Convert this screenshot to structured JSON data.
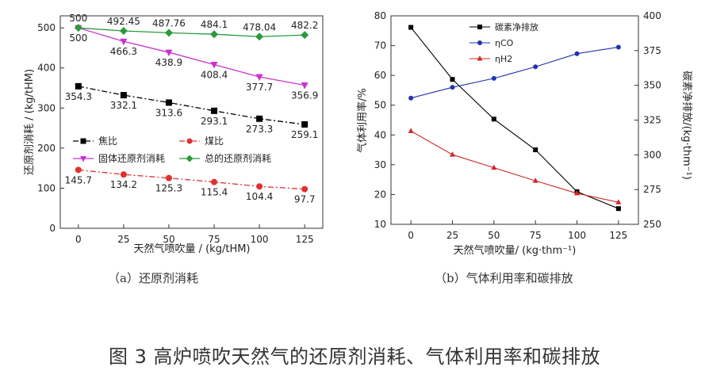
{
  "figure_caption": "图 3  高炉喷吹天然气的还原剂消耗、气体利用率和碳排放",
  "chart_data": [
    {
      "type": "line",
      "caption": "（a）还原剂消耗",
      "xlabel": "天然气喷吹量 / (kg/tHM)",
      "ylabel": "还原剂消耗 / (kg/tHM)",
      "x": [
        0,
        25,
        50,
        75,
        100,
        125
      ],
      "x_ticks": [
        "0",
        "25",
        "50",
        "75",
        "100",
        "125"
      ],
      "y_ticks": [
        "0",
        "100",
        "200",
        "300",
        "400",
        "500"
      ],
      "xlim": [
        -10,
        135
      ],
      "ylim": [
        0,
        530
      ],
      "series": [
        {
          "name": "焦比",
          "values": [
            354.3,
            332.1,
            313.6,
            293.1,
            273.3,
            259.1
          ],
          "labels": [
            "354.3",
            "332.1",
            "313.6",
            "293.1",
            "273.3",
            "259.1"
          ],
          "color": "#000000",
          "marker": "square",
          "dash": "dashdot",
          "label_pos": "below"
        },
        {
          "name": "煤比",
          "values": [
            145.7,
            134.2,
            125.3,
            115.4,
            104.4,
            97.7
          ],
          "labels": [
            "145.7",
            "134.2",
            "125.3",
            "115.4",
            "104.4",
            "97.7"
          ],
          "color": "#e03030",
          "marker": "circle",
          "dash": "dashdot",
          "label_pos": "below"
        },
        {
          "name": "固体还原剂消耗",
          "values": [
            500,
            466.3,
            438.9,
            408.4,
            377.7,
            356.9
          ],
          "labels": [
            "500",
            "466.3",
            "438.9",
            "408.4",
            "377.7",
            "356.9"
          ],
          "color": "#cc33cc",
          "marker": "triangle-down",
          "dash": "solid",
          "label_pos": "below"
        },
        {
          "name": "总的还原剂消耗",
          "values": [
            500,
            492.45,
            487.76,
            484.1,
            478.04,
            482.2
          ],
          "labels": [
            "500",
            "492.45",
            "487.76",
            "484.1",
            "478.04",
            "482.2"
          ],
          "color": "#2a9a3a",
          "marker": "diamond",
          "dash": "solid",
          "label_pos": "above"
        }
      ]
    },
    {
      "type": "line",
      "caption": "（b）气体利用率和碳排放",
      "xlabel": "天然气喷吹量/ (kg·thm⁻¹)",
      "ylabel_left": "气体利用率/%",
      "ylabel_right": "碳素净排放/(kg·thm⁻¹)",
      "x": [
        0,
        25,
        50,
        75,
        100,
        125
      ],
      "x_ticks": [
        "0",
        "25",
        "50",
        "75",
        "100",
        "125"
      ],
      "y_left_ticks": [
        "10",
        "20",
        "30",
        "40",
        "50",
        "60",
        "70",
        "80"
      ],
      "y_right_ticks": [
        "250",
        "275",
        "300",
        "325",
        "350",
        "375",
        "400"
      ],
      "xlim": [
        -12,
        137
      ],
      "ylim_left": [
        10,
        80
      ],
      "ylim_right": [
        250,
        400
      ],
      "series": [
        {
          "name": "碳素净排放",
          "axis": "right",
          "values": [
            391.7,
            354.3,
            325.7,
            303.6,
            273.5,
            261.3
          ],
          "color": "#000000",
          "marker": "square"
        },
        {
          "name": "ηCO",
          "axis": "left",
          "values": [
            52.4,
            56,
            59,
            62.9,
            67.3,
            69.5
          ],
          "color": "#2233aa",
          "marker": "circle"
        },
        {
          "name": "ηH2",
          "axis": "left",
          "values": [
            41.3,
            33.4,
            29,
            24.6,
            20.4,
            17.4
          ],
          "color": "#d02828",
          "marker": "triangle-up"
        }
      ]
    }
  ]
}
